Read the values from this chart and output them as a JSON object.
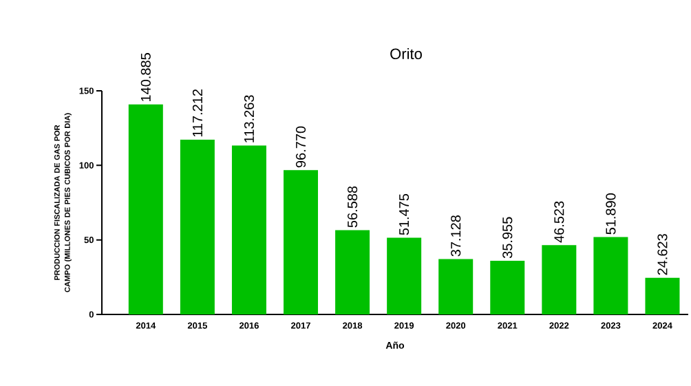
{
  "chart_data": {
    "type": "bar",
    "title": "Orito",
    "xlabel": "Año",
    "ylabel": "PRODUCCION FISCALIZADA DE GAS POR CAMPO (MILLONES DE PIES CUBICOS POR DIA)",
    "categories": [
      "2014",
      "2015",
      "2016",
      "2017",
      "2018",
      "2019",
      "2020",
      "2021",
      "2022",
      "2023",
      "2024"
    ],
    "values": [
      140.885,
      117.212,
      113.263,
      96.77,
      56.588,
      51.475,
      37.128,
      35.955,
      46.523,
      51.89,
      24.623
    ],
    "value_labels": [
      "140.885",
      "117.212",
      "113.263",
      "96.770",
      "56.588",
      "51.475",
      "37.128",
      "35.955",
      "46.523",
      "51.890",
      "24.623"
    ],
    "color": "#00c000",
    "ylim": [
      0,
      150
    ],
    "yticks": [
      0,
      50,
      100,
      150
    ]
  }
}
